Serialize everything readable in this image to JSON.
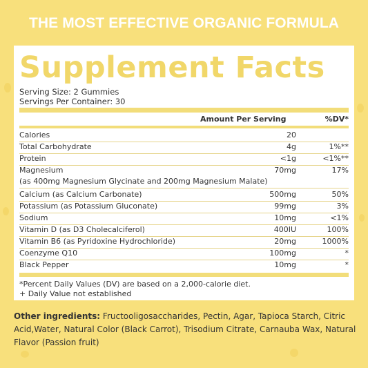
{
  "banner": "THE MOST EFFECTIVE ORGANIC FORMULA",
  "title": "Supplement Facts",
  "serving_size": "Serving Size: 2 Gummies",
  "servings_per_container": "Servings Per Container: 30",
  "header": {
    "amount": "Amount Per Serving",
    "dv": "%DV*"
  },
  "rows": [
    {
      "label": "Calories",
      "amount": "20",
      "dv": ""
    },
    {
      "label": "Total Carbohydrate",
      "amount": "4g",
      "dv": "1%**"
    },
    {
      "label": "Protein",
      "amount": "<1g",
      "dv": "<1%**"
    },
    {
      "label": "Magnesium",
      "sub": "(as 400mg Magnesium Glycinate and 200mg Magnesium Malate)",
      "amount": "70mg",
      "dv": "17%"
    },
    {
      "label": "Calcium (as Calcium Carbonate)",
      "amount": "500mg",
      "dv": "50%"
    },
    {
      "label": "Potassium (as Potassium Gluconate)",
      "amount": "99mg",
      "dv": "3%"
    },
    {
      "label": "Sodium",
      "amount": "10mg",
      "dv": "<1%"
    },
    {
      "label": "Vitamin D (as D3 Cholecalciferol)",
      "amount": "400IU",
      "dv": "100%"
    },
    {
      "label": "Vitamin B6 (as Pyridoxine Hydrochloride)",
      "amount": "20mg",
      "dv": "1000%"
    },
    {
      "label": "Coenzyme Q10",
      "amount": "100mg",
      "dv": "*"
    },
    {
      "label": "Black Pepper",
      "amount": "10mg",
      "dv": "*"
    }
  ],
  "footnote_1": "*Percent Daily Values (DV) are based on a 2,000-calorie diet.",
  "footnote_2": "+ Daily Value not established",
  "other_label": "Other ingredients:",
  "other_text": "Fructooligosaccharides, Pectin, Agar, Tapioca Starch, Citric Acid,Water, Natural Color (Black Carrot), Trisodium Citrate, Carnauba Wax, Natural Flavor (Passion fruit)",
  "colors": {
    "background": "#f8e07c",
    "title": "#f1d769",
    "bar": "#f2dd7a",
    "panel": "#ffffff"
  }
}
